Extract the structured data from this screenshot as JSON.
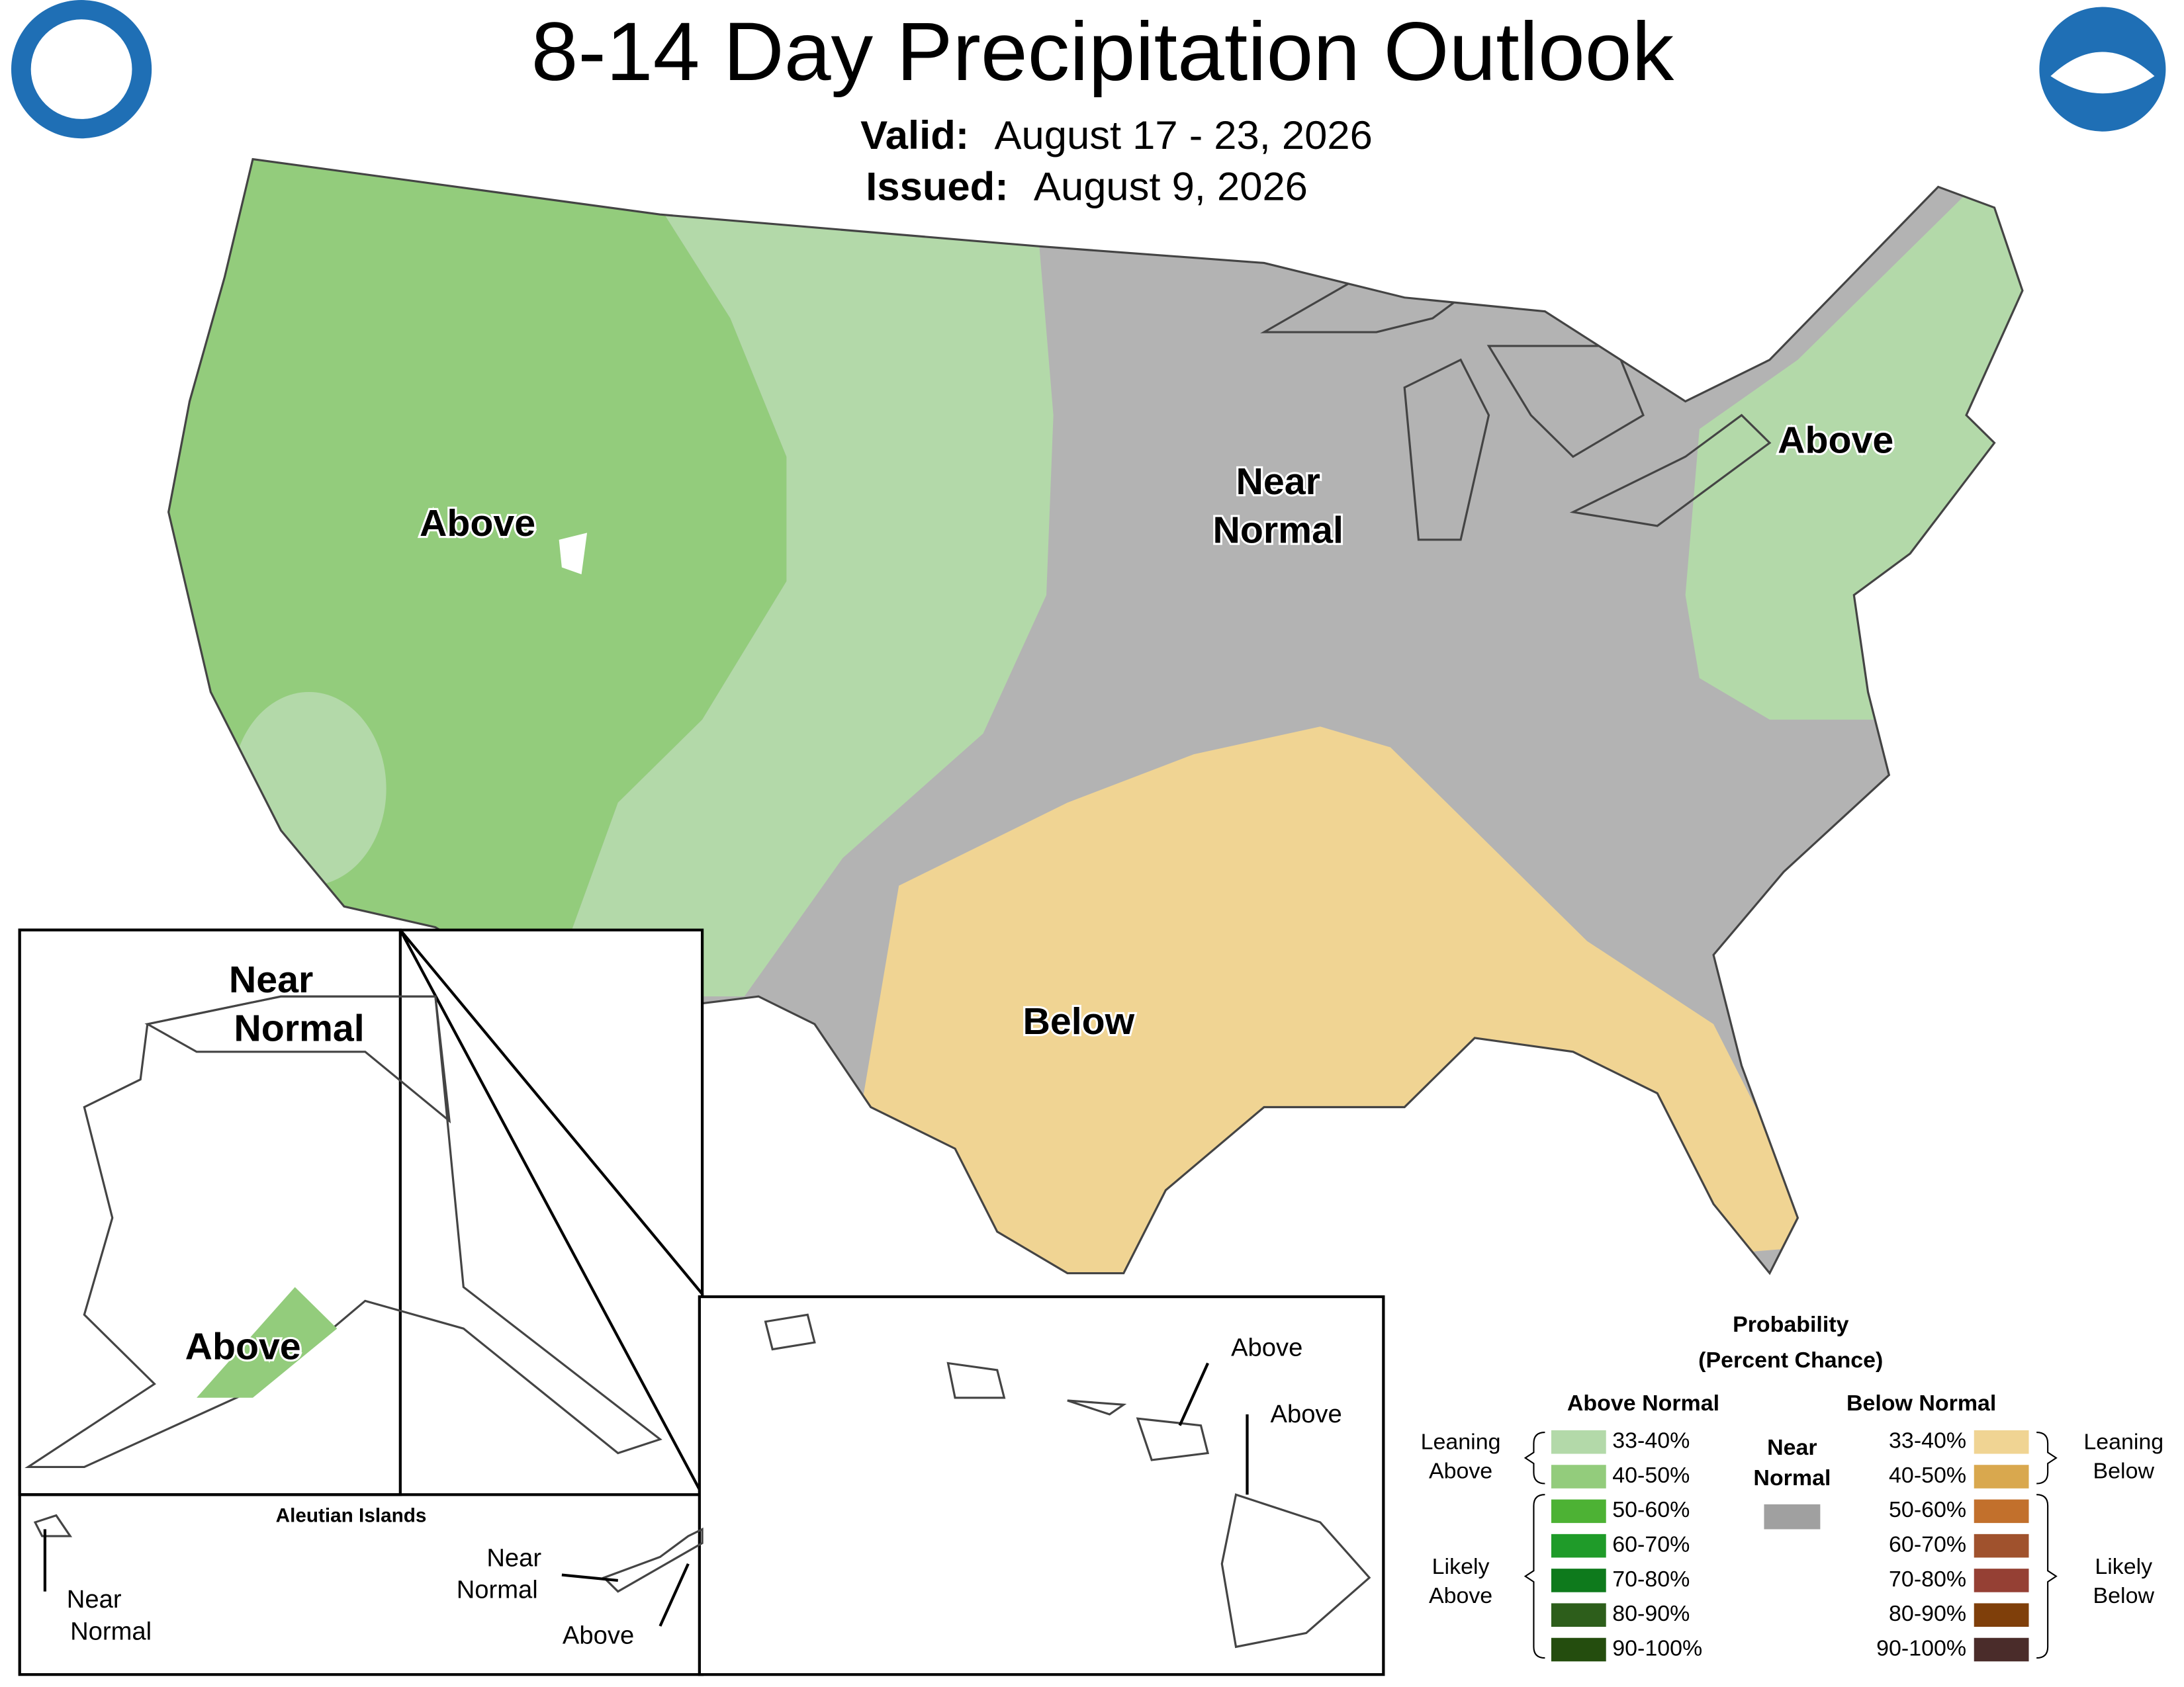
{
  "header": {
    "title": "8-14 Day Precipitation Outlook",
    "valid_label": "Valid:",
    "valid": "August 17 - 23, 2026",
    "issued_label": "Issued:",
    "issued": "August 9, 2026"
  },
  "conus_labels": {
    "west": "Above",
    "central": [
      "Near",
      "Normal"
    ],
    "northeast": "Above",
    "south": "Below"
  },
  "alaska_labels": {
    "north": [
      "Near",
      "Normal"
    ],
    "south": "Above"
  },
  "aleutian": {
    "title": "Aleutian Islands",
    "west": [
      "Near",
      "Normal"
    ],
    "middle": [
      "Near",
      "Normal"
    ],
    "east": "Above"
  },
  "hawaii_labels": {
    "maui": "Above",
    "big_island": "Above"
  },
  "legend": {
    "title": [
      "Probability",
      "(Percent Chance)"
    ],
    "above": {
      "heading": "Above Normal",
      "items": [
        {
          "range": "33-40%",
          "color": "#b3d9a9"
        },
        {
          "range": "40-50%",
          "color": "#93cc7c"
        },
        {
          "range": "50-60%",
          "color": "#4db234"
        },
        {
          "range": "60-70%",
          "color": "#1f9b29"
        },
        {
          "range": "70-80%",
          "color": "#0e7a1c"
        },
        {
          "range": "80-90%",
          "color": "#2d5e1b"
        },
        {
          "range": "90-100%",
          "color": "#244d0e"
        }
      ]
    },
    "near": {
      "heading": [
        "Near",
        "Normal"
      ],
      "color": "#a0a0a0"
    },
    "below": {
      "heading": "Below Normal",
      "items": [
        {
          "range": "33-40%",
          "color": "#f0d493"
        },
        {
          "range": "40-50%",
          "color": "#d9a84e"
        },
        {
          "range": "50-60%",
          "color": "#c2702c"
        },
        {
          "range": "60-70%",
          "color": "#a0522d"
        },
        {
          "range": "70-80%",
          "color": "#954034"
        },
        {
          "range": "80-90%",
          "color": "#7f3f0a"
        },
        {
          "range": "90-100%",
          "color": "#4a2c2a"
        }
      ]
    },
    "brackets": {
      "leaning_above": [
        "Leaning",
        "Above"
      ],
      "likely_above": [
        "Likely",
        "Above"
      ],
      "leaning_below": [
        "Leaning",
        "Below"
      ],
      "likely_below": [
        "Likely",
        "Below"
      ]
    }
  }
}
